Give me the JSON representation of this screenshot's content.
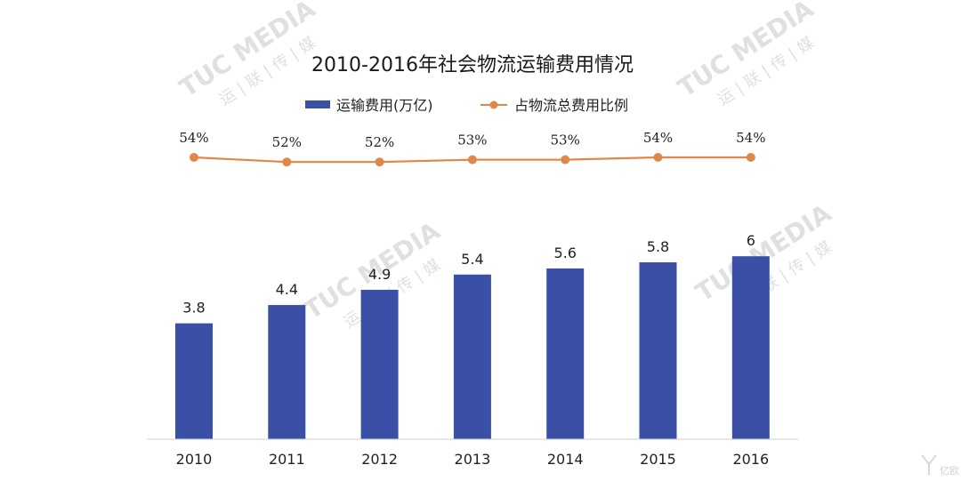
{
  "watermark": {
    "brand": "TUC MEDIA",
    "brand_cn": "运 | 联 | 传 | 媒",
    "corner_logo": "亿欧"
  },
  "chart_data": {
    "type": "bar",
    "title": "2010-2016年社会物流运输费用情况",
    "categories": [
      "2010",
      "2011",
      "2012",
      "2013",
      "2014",
      "2015",
      "2016"
    ],
    "series": [
      {
        "name": "运输费用(万亿)",
        "type": "bar",
        "values": [
          3.8,
          4.4,
          4.9,
          5.4,
          5.6,
          5.8,
          6
        ],
        "labels": [
          "3.8",
          "4.4",
          "4.9",
          "5.4",
          "5.6",
          "5.8",
          "6"
        ],
        "color": "#3a4fa6"
      },
      {
        "name": "占物流总费用比例",
        "type": "line",
        "values": [
          54,
          52,
          52,
          53,
          53,
          54,
          54
        ],
        "labels": [
          "54%",
          "52%",
          "52%",
          "53%",
          "53%",
          "54%",
          "54%"
        ],
        "color": "#e0874a"
      }
    ],
    "legend_position": "top",
    "grid": false
  }
}
